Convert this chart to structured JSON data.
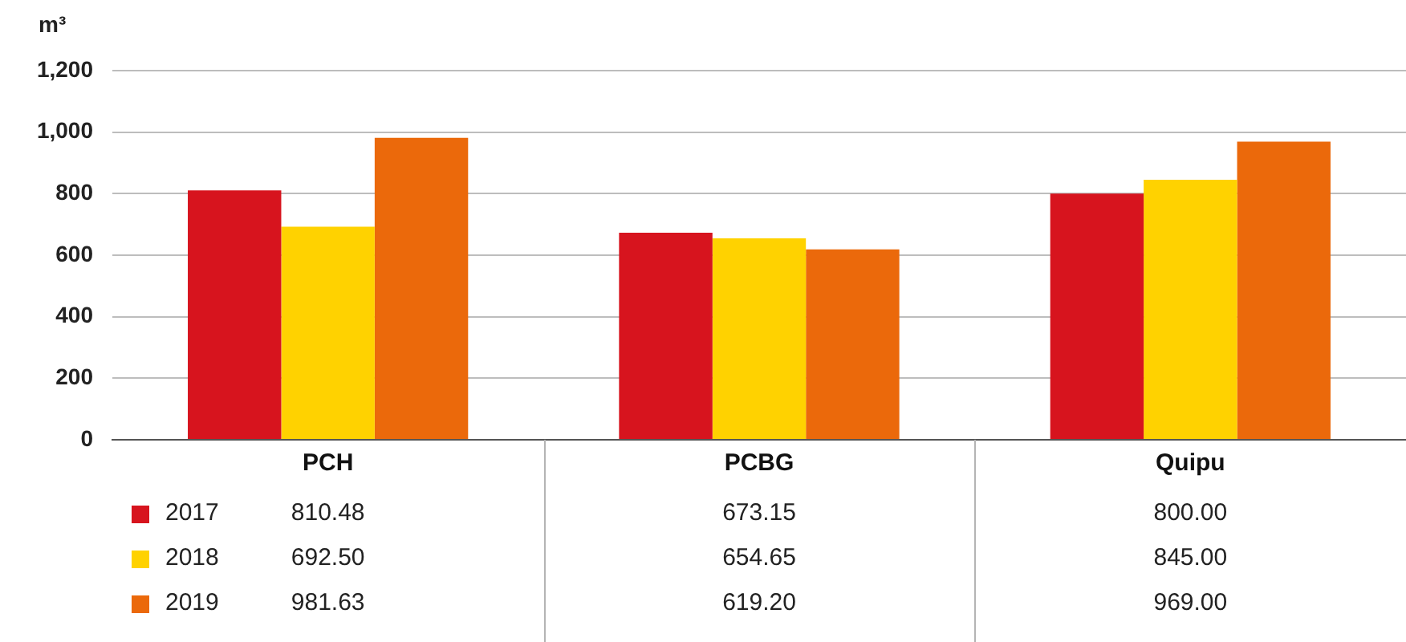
{
  "chart_data": {
    "type": "bar",
    "ylabel": "m³",
    "categories": [
      "PCH",
      "PCBG",
      "Quipu"
    ],
    "series": [
      {
        "name": "2017",
        "color": "#d7141e",
        "values": [
          810.48,
          673.15,
          800.0
        ],
        "value_labels": [
          "810.48",
          "673.15",
          "800.00"
        ]
      },
      {
        "name": "2018",
        "color": "#ffd200",
        "values": [
          692.5,
          654.65,
          845.0
        ],
        "value_labels": [
          "692.50",
          "654.65",
          "845.00"
        ]
      },
      {
        "name": "2019",
        "color": "#eb690b",
        "values": [
          981.63,
          619.2,
          969.0
        ],
        "value_labels": [
          "981.63",
          "619.20",
          "969.00"
        ]
      }
    ],
    "ylim": [
      0,
      1200
    ],
    "yticks": [
      0,
      200,
      400,
      600,
      800,
      {
        "value": 1000,
        "label": "1,000"
      },
      {
        "value": 1200,
        "label": "1,200"
      }
    ],
    "grid": "y",
    "legend": "bottom"
  }
}
